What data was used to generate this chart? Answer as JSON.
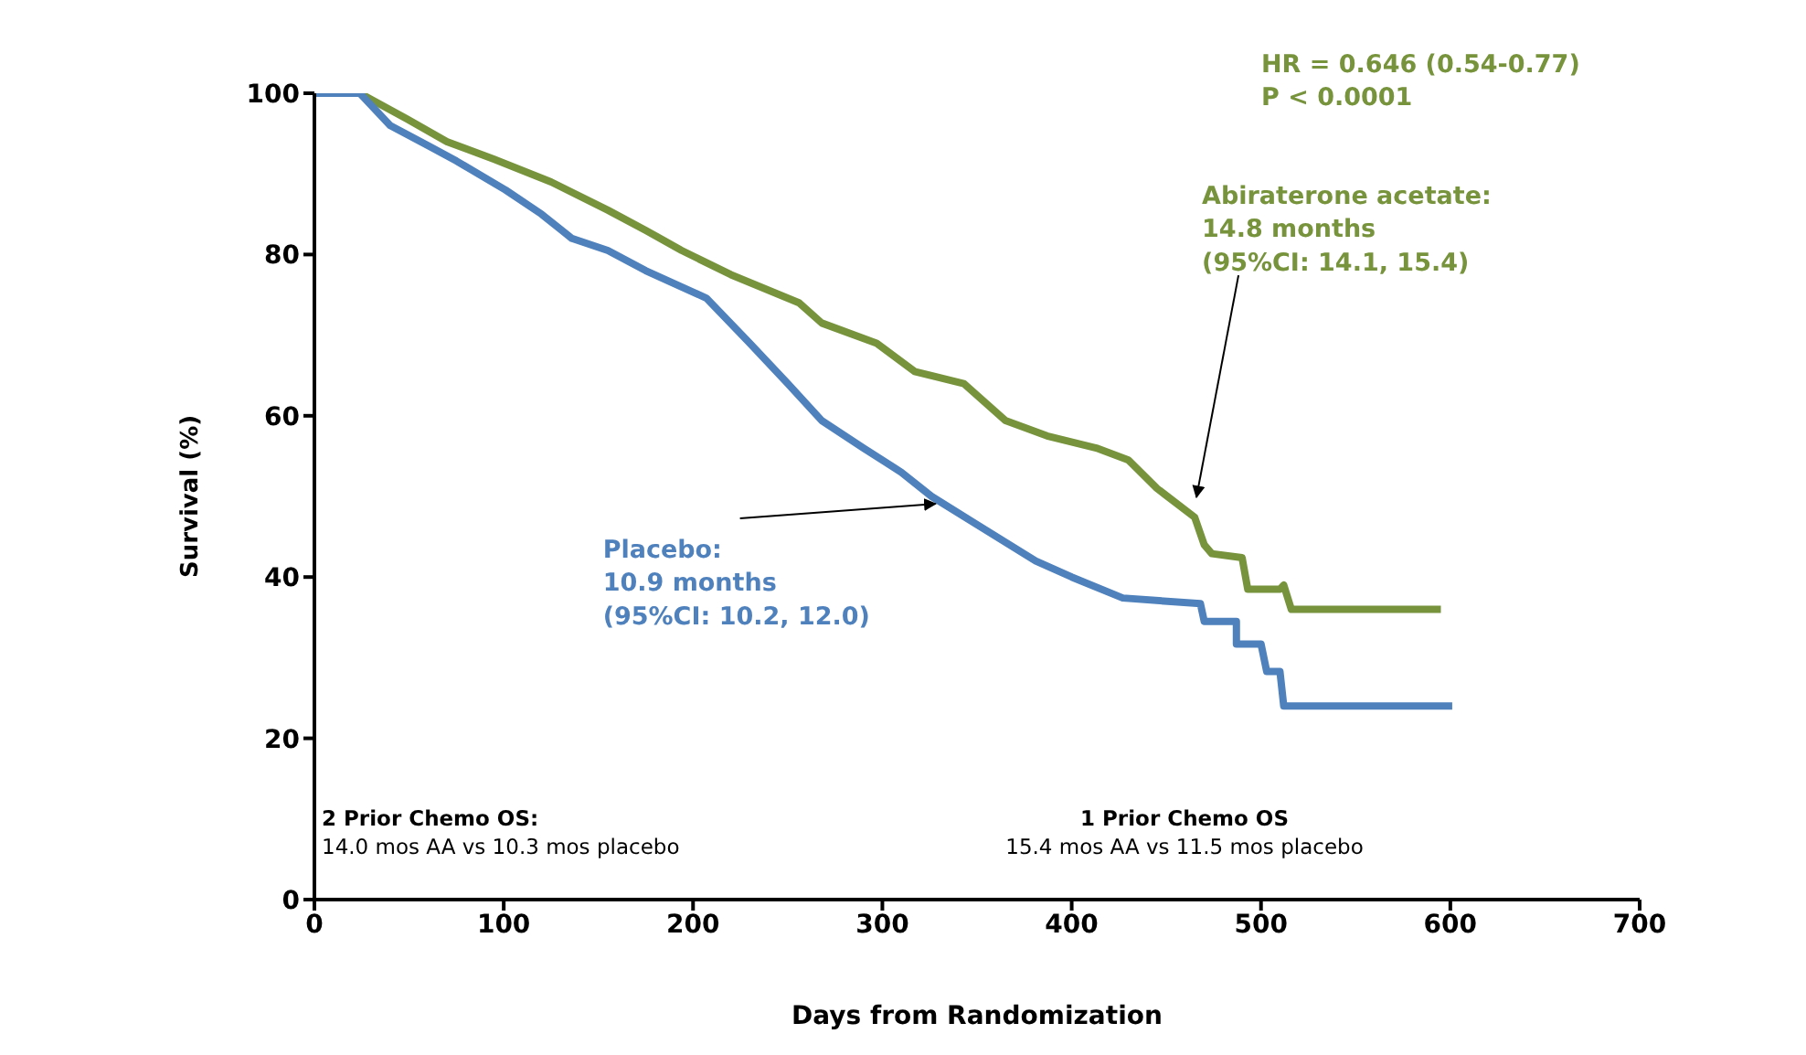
{
  "chart_data": {
    "type": "line",
    "xlabel": "Days from Randomization",
    "ylabel": "Survival (%)",
    "xlim": [
      0,
      700
    ],
    "xticks": [
      0,
      100,
      200,
      300,
      400,
      500,
      600,
      700
    ],
    "ylim": [
      0,
      100
    ],
    "yticks": [
      0,
      20,
      40,
      60,
      80,
      100
    ],
    "grid": false,
    "legend": false,
    "marker": "none",
    "line_style": "solid",
    "series": [
      {
        "color": "#77933c",
        "x": [
          0,
          24,
          49,
          70,
          95,
          125,
          155,
          175,
          194,
          220,
          256,
          268,
          297,
          317,
          343,
          365,
          387,
          413,
          430,
          445,
          465,
          470,
          474,
          490,
          493,
          510,
          512,
          516,
          595
        ],
        "values": [
          100,
          100,
          96.8,
          94,
          91.8,
          89,
          85.5,
          83,
          80.5,
          77.5,
          74,
          71.5,
          69,
          65.5,
          64,
          59.4,
          57.5,
          56,
          54.5,
          51,
          47.4,
          44,
          42.9,
          42.4,
          38.5,
          38.5,
          39,
          36,
          36
        ]
      },
      {
        "color": "#4f81bd",
        "x": [
          0,
          24,
          40,
          60,
          75,
          101,
          120,
          136,
          155,
          175,
          207,
          230,
          250,
          268,
          290,
          310,
          326,
          350,
          381,
          400,
          427,
          468,
          470,
          487,
          487,
          500,
          503,
          510,
          512,
          601
        ],
        "values": [
          100,
          100,
          96,
          93.5,
          91.6,
          88,
          85,
          82,
          80.5,
          78,
          74.6,
          69,
          64,
          59.4,
          56,
          53,
          50,
          46.5,
          42,
          40,
          37.4,
          36.7,
          34.5,
          34.5,
          31.7,
          31.7,
          28.3,
          28.3,
          24,
          24
        ]
      }
    ],
    "annotations": [
      "HR = 0.646 (0.54-0.77)\nP < 0.0001",
      {
        "text": "Abiraterone acetate:\n14.8 months\n(95%CI: 14.1, 15.4)",
        "x": 463,
        "y": 49
      },
      {
        "text": "Placebo:\n10.9 months\n(95%CI: 10.2, 12.0)",
        "x": 331,
        "y": 50
      },
      "2 Prior Chemo OS:\n14.0 mos AA vs 10.3 mos placebo",
      "1 Prior Chemo OS\n15.4 mos AA vs 11.5 mos placebo"
    ]
  }
}
